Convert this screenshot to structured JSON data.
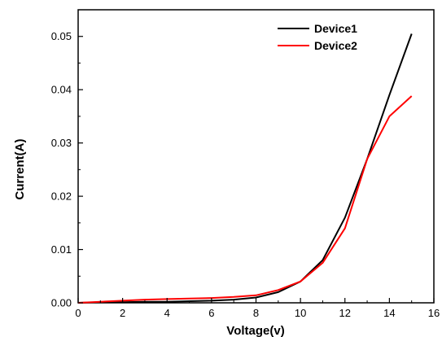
{
  "chart_data": {
    "type": "line",
    "xlabel": "Voltage(v)",
    "ylabel": "Current(A)",
    "xlim": [
      0,
      16
    ],
    "ylim": [
      0,
      0.055
    ],
    "x_ticks": [
      0,
      2,
      4,
      6,
      8,
      10,
      12,
      14,
      16
    ],
    "x_tick_labels": [
      "0",
      "2",
      "4",
      "6",
      "8",
      "10",
      "12",
      "14",
      "16"
    ],
    "y_ticks": [
      0,
      0.01,
      0.02,
      0.03,
      0.04,
      0.05
    ],
    "y_tick_labels": [
      "0.00",
      "0.01",
      "0.02",
      "0.03",
      "0.04",
      "0.05"
    ],
    "grid": false,
    "legend_position": "top-right",
    "series": [
      {
        "name": "Device1",
        "color": "#000000",
        "x": [
          0,
          1,
          2,
          3,
          4,
          5,
          6,
          7,
          8,
          9,
          10,
          11,
          12,
          13,
          14,
          15
        ],
        "y": [
          0,
          0.0001,
          0.0001,
          0.0002,
          0.0002,
          0.0003,
          0.0004,
          0.0006,
          0.001,
          0.002,
          0.004,
          0.008,
          0.016,
          0.027,
          0.039,
          0.0505
        ]
      },
      {
        "name": "Device2",
        "color": "#ff0000",
        "x": [
          0,
          1,
          2,
          3,
          4,
          5,
          6,
          7,
          8,
          9,
          10,
          11,
          12,
          13,
          14,
          15
        ],
        "y": [
          0,
          0.0002,
          0.0004,
          0.0006,
          0.0007,
          0.0008,
          0.0009,
          0.0011,
          0.0014,
          0.0024,
          0.004,
          0.0075,
          0.014,
          0.027,
          0.035,
          0.0388
        ]
      }
    ]
  }
}
